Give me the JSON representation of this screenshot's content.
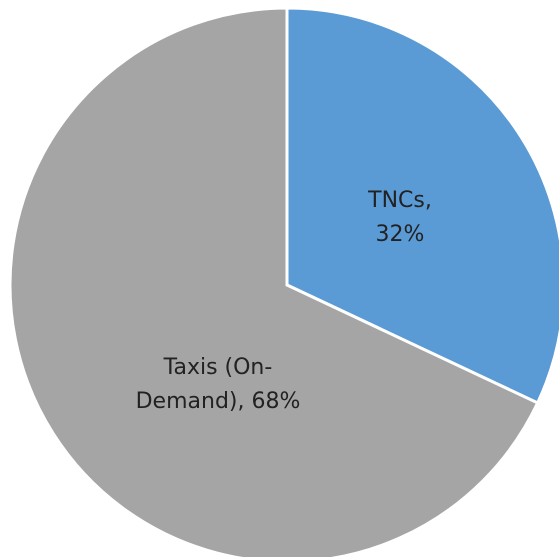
{
  "chart_data": {
    "type": "pie",
    "values": [
      32,
      68
    ],
    "value_labels": [
      "TNCs, 32%",
      "Taxis (On-Demand), 68%"
    ],
    "colors": [
      "#5b9bd5",
      "#a5a5a5"
    ]
  }
}
